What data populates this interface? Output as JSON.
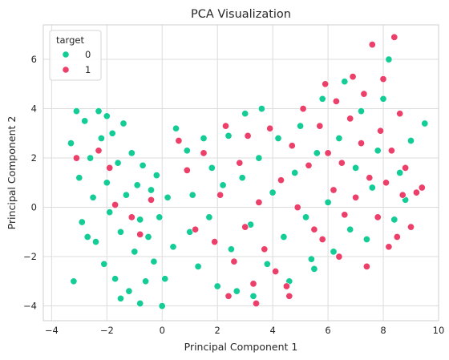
{
  "chart_data": {
    "type": "scatter",
    "title": "PCA Visualization",
    "xlabel": "Principal Component 1",
    "ylabel": "Principal Component 2",
    "xlim": [
      -4.3,
      10.0
    ],
    "ylim": [
      -4.6,
      7.4
    ],
    "xticks": [
      -4,
      -2,
      0,
      2,
      4,
      6,
      8,
      10
    ],
    "yticks": [
      -4,
      -2,
      0,
      2,
      4,
      6
    ],
    "grid": true,
    "legend": {
      "title": "target",
      "placement": "top-left",
      "entries": [
        {
          "label": "0",
          "color": "#13cc96"
        },
        {
          "label": "1",
          "color": "#ec406a"
        }
      ]
    },
    "series": [
      {
        "name": "0",
        "color": "#13cc96",
        "points": [
          [
            -3.3,
            2.6
          ],
          [
            -3.1,
            3.9
          ],
          [
            -3.0,
            1.2
          ],
          [
            -2.9,
            -0.6
          ],
          [
            -2.8,
            3.5
          ],
          [
            -2.6,
            2.0
          ],
          [
            -2.5,
            0.4
          ],
          [
            -2.4,
            -1.4
          ],
          [
            -2.3,
            3.9
          ],
          [
            -2.2,
            2.8
          ],
          [
            -2.1,
            -2.3
          ],
          [
            -2.0,
            1.0
          ],
          [
            -1.9,
            -0.2
          ],
          [
            -1.8,
            3.0
          ],
          [
            -1.7,
            -2.9
          ],
          [
            -1.6,
            1.8
          ],
          [
            -1.5,
            -1.0
          ],
          [
            -1.4,
            3.4
          ],
          [
            -1.3,
            0.5
          ],
          [
            -1.2,
            -3.4
          ],
          [
            -1.1,
            2.2
          ],
          [
            -1.0,
            -1.8
          ],
          [
            -0.9,
            0.9
          ],
          [
            -0.8,
            -0.5
          ],
          [
            -0.7,
            1.7
          ],
          [
            -0.6,
            -3.0
          ],
          [
            -0.5,
            -1.2
          ],
          [
            -0.4,
            0.7
          ],
          [
            -0.3,
            -2.2
          ],
          [
            -0.2,
            1.3
          ],
          [
            -0.1,
            -0.4
          ],
          [
            0.1,
            -2.9
          ],
          [
            0.2,
            0.4
          ],
          [
            0.4,
            -1.6
          ],
          [
            -3.2,
            -3.0
          ],
          [
            -2.7,
            -1.2
          ],
          [
            -2.0,
            3.7
          ],
          [
            -1.5,
            -3.7
          ],
          [
            -0.8,
            -3.9
          ],
          [
            0.0,
            -4.0
          ],
          [
            0.5,
            3.2
          ],
          [
            0.9,
            2.3
          ],
          [
            1.0,
            -1.0
          ],
          [
            1.1,
            0.5
          ],
          [
            1.3,
            -2.4
          ],
          [
            1.5,
            2.8
          ],
          [
            1.7,
            -0.4
          ],
          [
            1.8,
            1.6
          ],
          [
            2.0,
            -3.2
          ],
          [
            2.2,
            0.9
          ],
          [
            2.4,
            2.9
          ],
          [
            2.5,
            -1.7
          ],
          [
            2.7,
            -3.4
          ],
          [
            2.9,
            1.2
          ],
          [
            3.0,
            3.8
          ],
          [
            3.2,
            -0.7
          ],
          [
            3.3,
            -3.6
          ],
          [
            3.5,
            2.0
          ],
          [
            3.6,
            4.0
          ],
          [
            3.8,
            -2.3
          ],
          [
            4.0,
            0.6
          ],
          [
            4.2,
            2.8
          ],
          [
            4.4,
            -1.2
          ],
          [
            4.6,
            -3.0
          ],
          [
            4.8,
            1.4
          ],
          [
            5.0,
            3.3
          ],
          [
            5.2,
            -0.4
          ],
          [
            5.4,
            -2.1
          ],
          [
            5.6,
            2.2
          ],
          [
            5.8,
            4.4
          ],
          [
            6.0,
            0.2
          ],
          [
            6.2,
            -1.8
          ],
          [
            6.4,
            2.8
          ],
          [
            6.6,
            5.1
          ],
          [
            6.8,
            -0.9
          ],
          [
            7.0,
            1.6
          ],
          [
            7.2,
            3.9
          ],
          [
            7.4,
            -1.3
          ],
          [
            7.6,
            0.8
          ],
          [
            7.8,
            2.3
          ],
          [
            8.0,
            4.4
          ],
          [
            8.2,
            6.0
          ],
          [
            8.4,
            -0.5
          ],
          [
            8.6,
            1.4
          ],
          [
            8.8,
            0.3
          ],
          [
            9.0,
            2.7
          ],
          [
            9.5,
            3.4
          ],
          [
            5.5,
            -2.5
          ]
        ]
      },
      {
        "name": "1",
        "color": "#ec406a",
        "points": [
          [
            -3.1,
            2.0
          ],
          [
            -2.3,
            2.3
          ],
          [
            -1.9,
            1.6
          ],
          [
            -1.7,
            0.1
          ],
          [
            -1.1,
            -0.4
          ],
          [
            -0.8,
            -1.1
          ],
          [
            -0.4,
            0.3
          ],
          [
            0.6,
            2.7
          ],
          [
            0.9,
            1.5
          ],
          [
            1.2,
            -0.9
          ],
          [
            1.5,
            2.2
          ],
          [
            1.9,
            -1.4
          ],
          [
            2.1,
            0.5
          ],
          [
            2.3,
            3.3
          ],
          [
            2.6,
            -2.2
          ],
          [
            2.8,
            1.8
          ],
          [
            3.0,
            -0.8
          ],
          [
            3.1,
            2.9
          ],
          [
            3.3,
            -3.1
          ],
          [
            3.5,
            0.2
          ],
          [
            3.7,
            -1.7
          ],
          [
            3.9,
            3.2
          ],
          [
            4.1,
            -2.6
          ],
          [
            4.3,
            1.1
          ],
          [
            4.5,
            -3.2
          ],
          [
            4.7,
            2.5
          ],
          [
            4.9,
            0.0
          ],
          [
            5.1,
            4.0
          ],
          [
            5.3,
            1.7
          ],
          [
            5.5,
            -0.9
          ],
          [
            5.7,
            3.3
          ],
          [
            5.9,
            5.0
          ],
          [
            6.0,
            2.2
          ],
          [
            6.2,
            0.7
          ],
          [
            6.3,
            4.3
          ],
          [
            6.5,
            1.8
          ],
          [
            6.6,
            -0.3
          ],
          [
            6.8,
            3.6
          ],
          [
            6.9,
            5.3
          ],
          [
            7.0,
            0.4
          ],
          [
            7.2,
            2.6
          ],
          [
            7.3,
            4.6
          ],
          [
            7.5,
            1.2
          ],
          [
            7.6,
            6.6
          ],
          [
            7.8,
            -0.4
          ],
          [
            7.9,
            3.1
          ],
          [
            8.0,
            5.2
          ],
          [
            8.1,
            1.0
          ],
          [
            8.3,
            2.3
          ],
          [
            8.4,
            6.9
          ],
          [
            8.5,
            -1.2
          ],
          [
            8.6,
            3.8
          ],
          [
            8.7,
            0.5
          ],
          [
            8.8,
            1.6
          ],
          [
            9.0,
            -0.8
          ],
          [
            9.2,
            0.6
          ],
          [
            9.4,
            0.8
          ],
          [
            7.4,
            -2.4
          ],
          [
            6.4,
            -2.0
          ],
          [
            5.8,
            -1.3
          ],
          [
            8.2,
            -1.6
          ],
          [
            3.4,
            -3.9
          ],
          [
            2.4,
            -3.6
          ],
          [
            4.6,
            -3.6
          ]
        ]
      }
    ]
  }
}
